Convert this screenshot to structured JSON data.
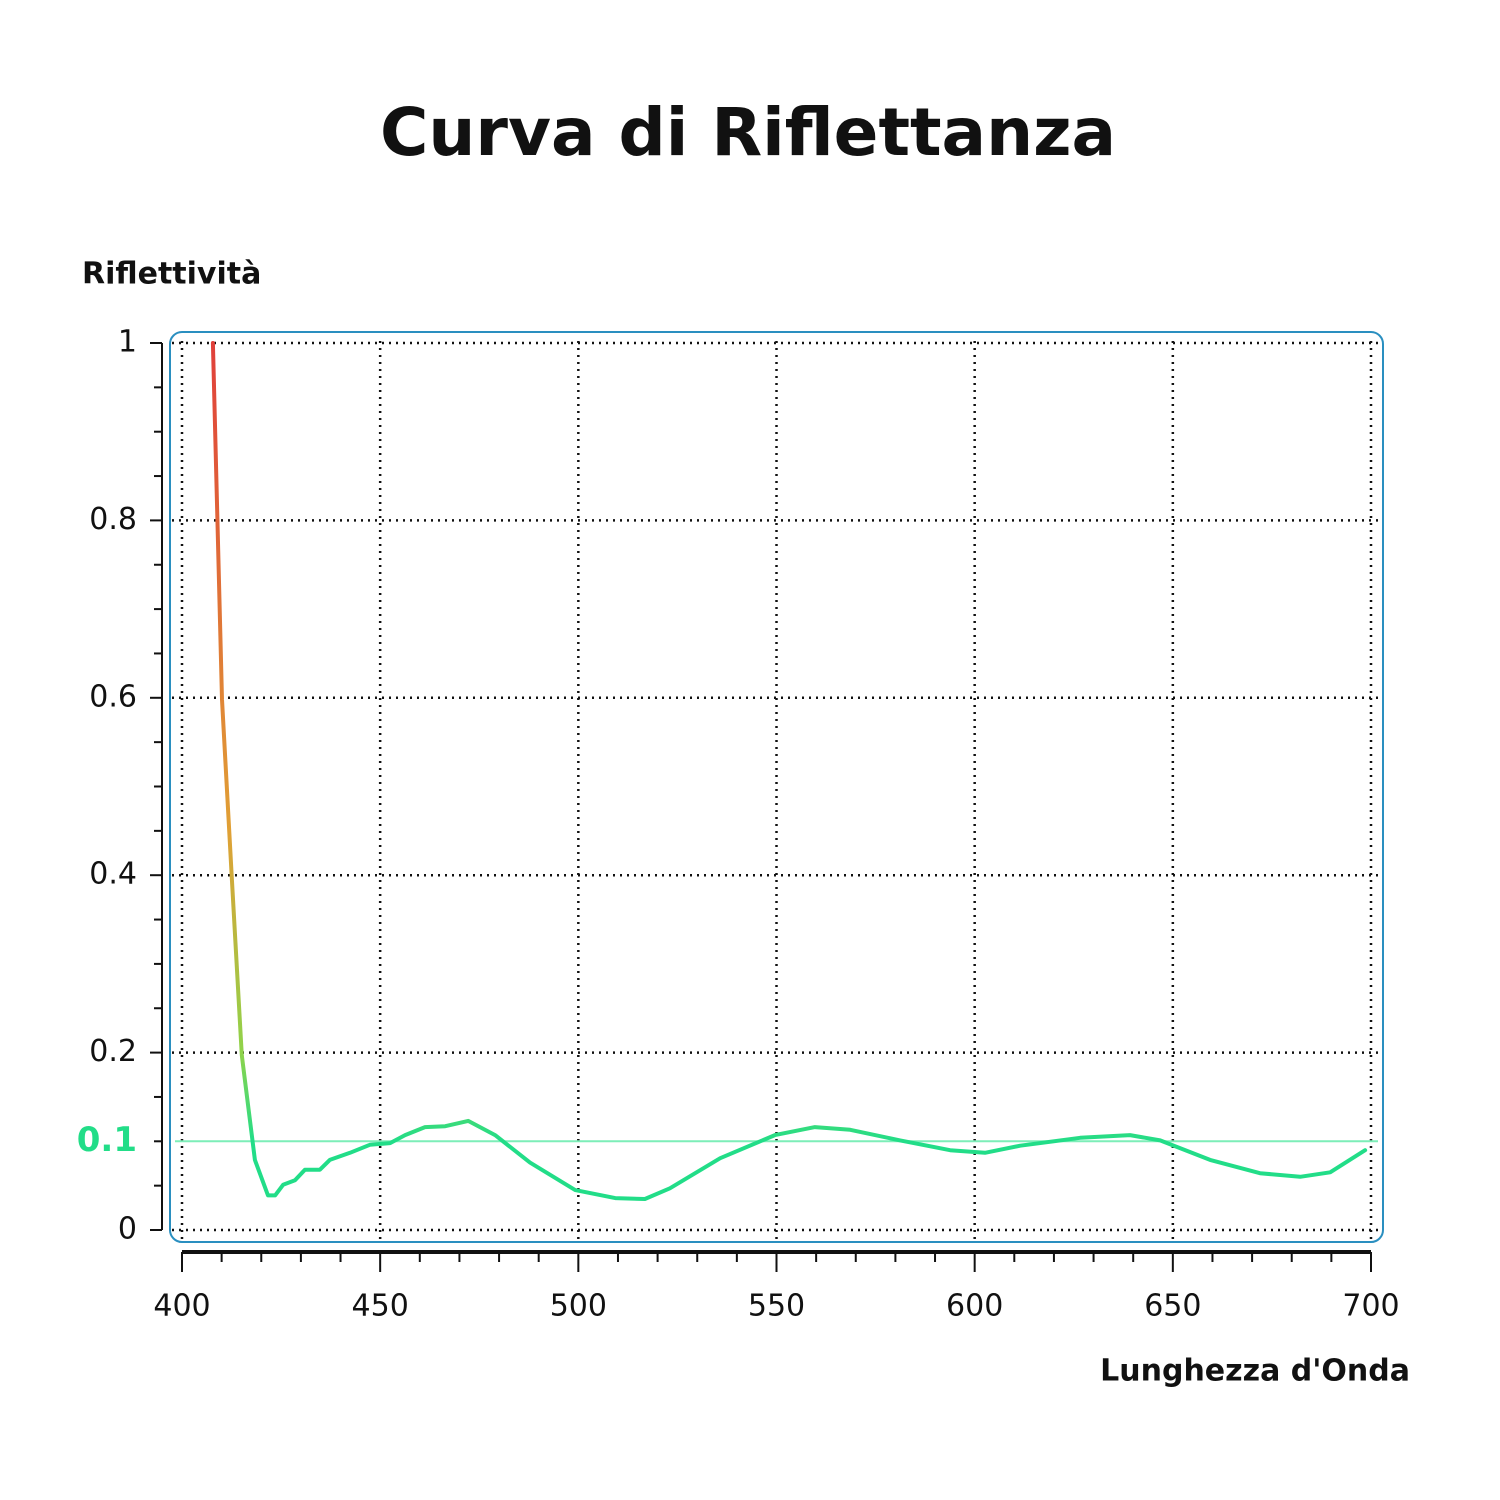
{
  "chart_data": {
    "type": "line",
    "title": "Curva di Riflettanza",
    "y_label": "Riflettività",
    "x_label": "Lunghezza d'Onda",
    "xlim": [
      400,
      700
    ],
    "ylim": [
      0,
      1
    ],
    "xticks": [
      400,
      450,
      500,
      550,
      600,
      650,
      700
    ],
    "yticks": [
      0,
      0.2,
      0.4,
      0.6,
      0.8,
      1
    ],
    "xminorticks": [
      410,
      420,
      430,
      440,
      460,
      470,
      480,
      490,
      510,
      520,
      530,
      540,
      560,
      570,
      580,
      590,
      610,
      620,
      630,
      640,
      660,
      670,
      680,
      690
    ],
    "yminorticks": [
      0.05,
      0.1,
      0.15,
      0.25,
      0.3,
      0.35,
      0.45,
      0.5,
      0.55,
      0.65,
      0.7,
      0.75,
      0.85,
      0.9,
      0.95
    ],
    "grid": true,
    "reference_line": {
      "value": 0.1,
      "color": "#7deeb8",
      "label_color": "#22dd88"
    },
    "gradient": [
      "#22dd88",
      "#8fd34a",
      "#e0a035",
      "#e0403a"
    ],
    "series": [
      {
        "name": "Riflettività",
        "x": [
          407.8,
          410.1,
          412.6,
          415.1,
          418.4,
          421.7,
          423.5,
          425.5,
          428.5,
          431,
          434.8,
          437.3,
          442.4,
          447.4,
          452.5,
          456.3,
          461.3,
          466.4,
          472.2,
          479,
          487.8,
          499.2,
          509.3,
          516.8,
          523.1,
          535.8,
          549.6,
          559.7,
          568.6,
          581.2,
          593.8,
          602.6,
          611.5,
          626.6,
          639.2,
          646.8,
          659.4,
          672,
          682.1,
          689.7,
          698.5
        ],
        "values": [
          1.0,
          0.598,
          0.395,
          0.197,
          0.079,
          0.039,
          0.039,
          0.051,
          0.056,
          0.068,
          0.068,
          0.079,
          0.087,
          0.096,
          0.098,
          0.107,
          0.116,
          0.117,
          0.123,
          0.107,
          0.076,
          0.045,
          0.036,
          0.035,
          0.047,
          0.081,
          0.107,
          0.116,
          0.113,
          0.101,
          0.09,
          0.087,
          0.095,
          0.104,
          0.107,
          0.101,
          0.079,
          0.064,
          0.06,
          0.065,
          0.09
        ]
      }
    ]
  }
}
